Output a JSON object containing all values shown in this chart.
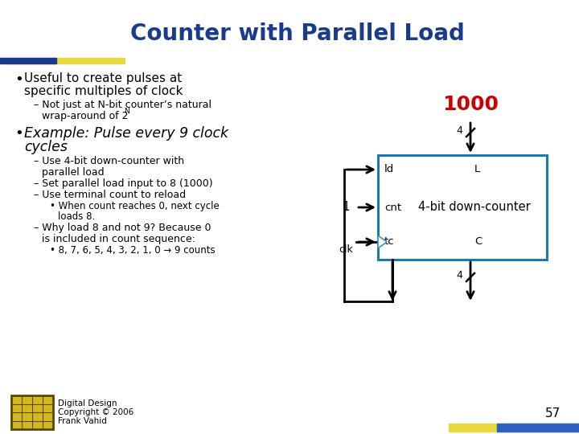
{
  "title": "Counter with Parallel Load",
  "title_color": "#1a3a8a",
  "title_fontsize": 20,
  "bg_color": "#ffffff",
  "text_color": "#000000",
  "accent_color": "#cc0000",
  "box_border_color": "#1a7aaa",
  "arrow_color": "#000000",
  "header_bar_yellow": "#e8d840",
  "header_bar_blue": "#1a3a8a",
  "footer_bar_yellow": "#e8d840",
  "footer_bar_blue": "#3060c0",
  "chip_color": "#d4b820",
  "chip_border": "#5a4a00",
  "footer1": "Digital Design",
  "footer2": "Copyright © 2006",
  "footer3": "Frank Vahid",
  "page_num": "57",
  "box_label": "4-bit down-counter",
  "port_ld": "ld",
  "port_cnt": "cnt",
  "port_tc": "tc",
  "port_L": "L",
  "port_C": "C",
  "label_1000": "1000",
  "label_4": "4",
  "label_1": "1",
  "label_clk": "clk"
}
